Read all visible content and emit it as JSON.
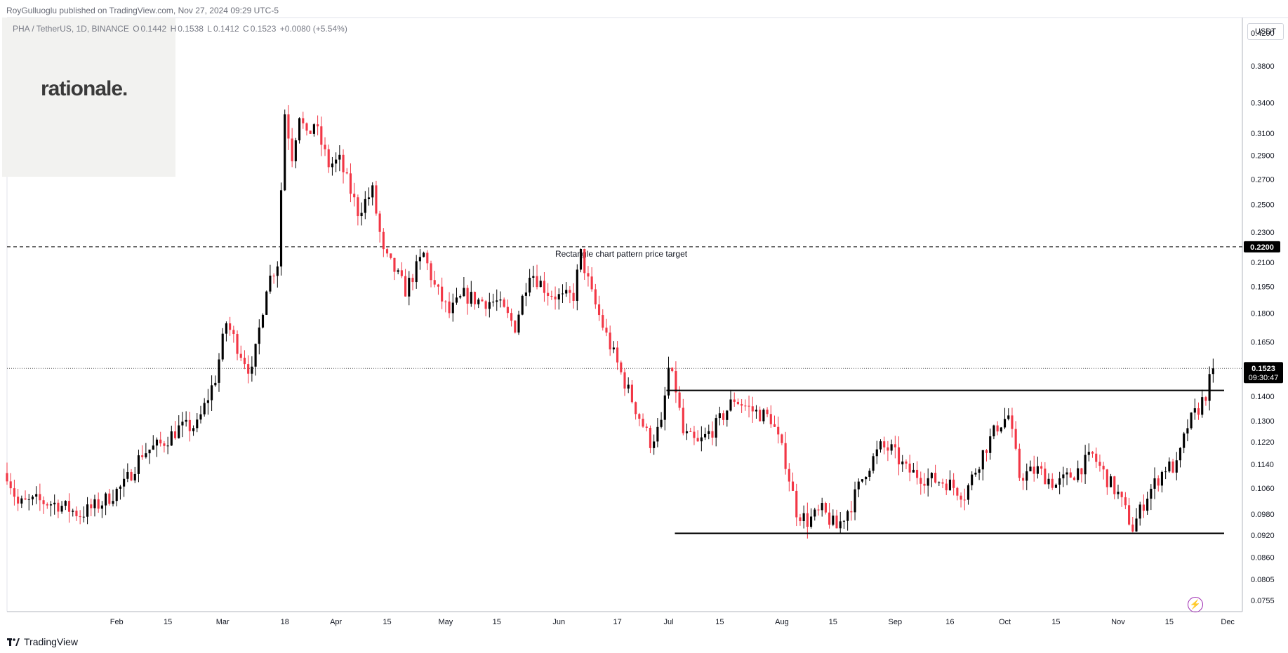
{
  "header": {
    "published": "RoyGulluoglu published on TradingView.com, Nov 27, 2024 09:29 UTC-5"
  },
  "logo": {
    "text": "rationale."
  },
  "legend": {
    "symbol": "PHA / TetherUS, 1D, BINANCE",
    "open_label": "O",
    "open": "0.1442",
    "high_label": "H",
    "high": "0.1538",
    "low_label": "L",
    "low": "0.1412",
    "close_label": "C",
    "close": "0.1523",
    "change": "+0.0080 (+5.54%)"
  },
  "price_scale": {
    "currency": "USDT"
  },
  "footer": {
    "brand": "TradingView"
  },
  "colors": {
    "up": "#000000",
    "down": "#f23645",
    "line": "#000000",
    "grid_text": "#131722"
  },
  "chart_data": {
    "type": "candlestick",
    "y_scale": "log",
    "ylim": [
      0.073,
      0.44
    ],
    "y_ticks": [
      "0.4200",
      "0.3800",
      "0.3400",
      "0.3100",
      "0.2900",
      "0.2700",
      "0.2500",
      "0.2300",
      "0.2100",
      "0.1950",
      "0.1800",
      "0.1650",
      "0.1400",
      "0.1300",
      "0.1220",
      "0.1140",
      "0.1060",
      "0.0980",
      "0.0920",
      "0.0860",
      "0.0805",
      "0.0755"
    ],
    "x_ticks": [
      "Feb",
      "15",
      "Mar",
      "18",
      "Apr",
      "15",
      "May",
      "15",
      "Jun",
      "17",
      "Jul",
      "15",
      "Aug",
      "15",
      "Sep",
      "16",
      "Oct",
      "15",
      "Nov",
      "15",
      "Dec"
    ],
    "x_tick_dates": [
      "2024-02-01",
      "2024-02-15",
      "2024-03-01",
      "2024-03-18",
      "2024-04-01",
      "2024-04-15",
      "2024-05-01",
      "2024-05-15",
      "2024-06-01",
      "2024-06-17",
      "2024-07-01",
      "2024-07-15",
      "2024-08-01",
      "2024-08-15",
      "2024-09-01",
      "2024-09-16",
      "2024-10-01",
      "2024-10-15",
      "2024-11-01",
      "2024-11-15",
      "2024-12-01"
    ],
    "x_range": [
      "2024-01-02",
      "2024-12-05"
    ],
    "last_price": {
      "value": 0.1523,
      "label": "0.1523",
      "countdown": "09:30:47"
    },
    "target_price": {
      "value": 0.22,
      "label": "0.2200",
      "annotation": "Rectangle chart pattern price target"
    },
    "rectangle": {
      "top": 0.1425,
      "bottom": 0.0925,
      "start": "2024-07-01",
      "end": "2024-11-30"
    },
    "ohlc_anchors": [
      [
        "2024-01-02",
        0.111
      ],
      [
        "2024-01-05",
        0.101
      ],
      [
        "2024-01-10",
        0.102
      ],
      [
        "2024-01-16",
        0.101
      ],
      [
        "2024-01-22",
        0.098
      ],
      [
        "2024-01-28",
        0.1015
      ],
      [
        "2024-02-03",
        0.107
      ],
      [
        "2024-02-08",
        0.118
      ],
      [
        "2024-02-13",
        0.121
      ],
      [
        "2024-02-18",
        0.127
      ],
      [
        "2024-02-23",
        0.128
      ],
      [
        "2024-02-28",
        0.148
      ],
      [
        "2024-03-02",
        0.175
      ],
      [
        "2024-03-05",
        0.163
      ],
      [
        "2024-03-09",
        0.15
      ],
      [
        "2024-03-13",
        0.196
      ],
      [
        "2024-03-16",
        0.21
      ],
      [
        "2024-03-17",
        0.262
      ],
      [
        "2024-03-18",
        0.33
      ],
      [
        "2024-03-20",
        0.29
      ],
      [
        "2024-03-22",
        0.33
      ],
      [
        "2024-03-24",
        0.305
      ],
      [
        "2024-03-26",
        0.32
      ],
      [
        "2024-03-30",
        0.282
      ],
      [
        "2024-04-02",
        0.285
      ],
      [
        "2024-04-07",
        0.245
      ],
      [
        "2024-04-11",
        0.26
      ],
      [
        "2024-04-14",
        0.215
      ],
      [
        "2024-04-17",
        0.205
      ],
      [
        "2024-04-20",
        0.193
      ],
      [
        "2024-04-25",
        0.215
      ],
      [
        "2024-04-28",
        0.195
      ],
      [
        "2024-05-02",
        0.18
      ],
      [
        "2024-05-06",
        0.19
      ],
      [
        "2024-05-10",
        0.187
      ],
      [
        "2024-05-15",
        0.186
      ],
      [
        "2024-05-20",
        0.173
      ],
      [
        "2024-05-24",
        0.205
      ],
      [
        "2024-05-29",
        0.192
      ],
      [
        "2024-06-02",
        0.188
      ],
      [
        "2024-06-05",
        0.19
      ],
      [
        "2024-06-07",
        0.215
      ],
      [
        "2024-06-10",
        0.19
      ],
      [
        "2024-06-14",
        0.168
      ],
      [
        "2024-06-18",
        0.15
      ],
      [
        "2024-06-22",
        0.135
      ],
      [
        "2024-06-26",
        0.122
      ],
      [
        "2024-06-29",
        0.128
      ],
      [
        "2024-07-01",
        0.152
      ],
      [
        "2024-07-03",
        0.143
      ],
      [
        "2024-07-05",
        0.125
      ],
      [
        "2024-07-09",
        0.121
      ],
      [
        "2024-07-14",
        0.128
      ],
      [
        "2024-07-19",
        0.139
      ],
      [
        "2024-07-24",
        0.134
      ],
      [
        "2024-07-29",
        0.131
      ],
      [
        "2024-08-02",
        0.115
      ],
      [
        "2024-08-05",
        0.099
      ],
      [
        "2024-08-08",
        0.096
      ],
      [
        "2024-08-12",
        0.099
      ],
      [
        "2024-08-16",
        0.094
      ],
      [
        "2024-08-20",
        0.101
      ],
      [
        "2024-08-24",
        0.112
      ],
      [
        "2024-08-28",
        0.12
      ],
      [
        "2024-08-31",
        0.119
      ],
      [
        "2024-09-04",
        0.112
      ],
      [
        "2024-09-10",
        0.109
      ],
      [
        "2024-09-15",
        0.108
      ],
      [
        "2024-09-20",
        0.104
      ],
      [
        "2024-09-25",
        0.118
      ],
      [
        "2024-09-29",
        0.128
      ],
      [
        "2024-10-02",
        0.132
      ],
      [
        "2024-10-05",
        0.11
      ],
      [
        "2024-10-10",
        0.112
      ],
      [
        "2024-10-15",
        0.107
      ],
      [
        "2024-10-20",
        0.111
      ],
      [
        "2024-10-25",
        0.117
      ],
      [
        "2024-10-29",
        0.109
      ],
      [
        "2024-11-01",
        0.104
      ],
      [
        "2024-11-05",
        0.094
      ],
      [
        "2024-11-09",
        0.104
      ],
      [
        "2024-11-14",
        0.113
      ],
      [
        "2024-11-17",
        0.113
      ],
      [
        "2024-11-20",
        0.128
      ],
      [
        "2024-11-23",
        0.135
      ],
      [
        "2024-11-25",
        0.141
      ],
      [
        "2024-11-27",
        0.1523
      ]
    ]
  }
}
